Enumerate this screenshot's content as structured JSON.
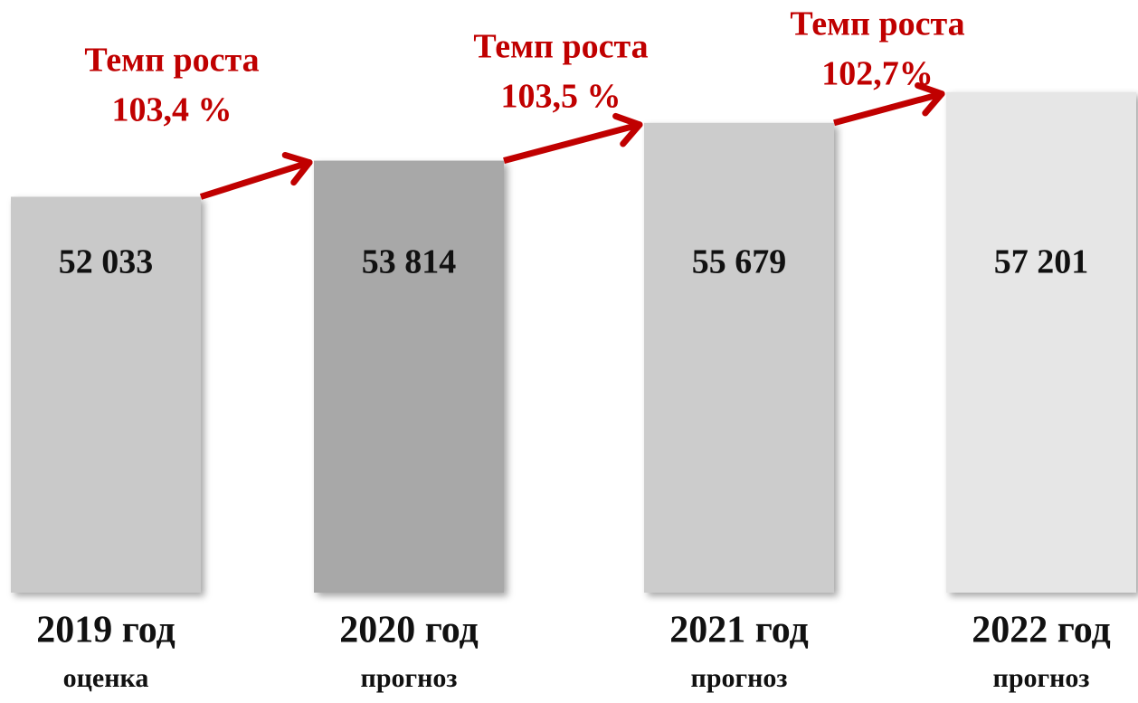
{
  "chart_data": {
    "type": "bar",
    "categories": [
      "2019 год",
      "2020 год",
      "2021 год",
      "2022 год"
    ],
    "sublabels": [
      "оценка",
      "прогноз",
      "прогноз",
      "прогноз"
    ],
    "values": [
      52033,
      53814,
      55679,
      57201
    ],
    "value_labels": [
      "52 033",
      "53 814",
      "55 679",
      "57 201"
    ],
    "colors": [
      "#c9c9c9",
      "#a8a8a8",
      "#cccccc",
      "#e6e6e6"
    ],
    "ylim": [
      32500,
      60000
    ],
    "annotations": [
      {
        "lines": [
          "Темп роста",
          "103,4 %"
        ]
      },
      {
        "lines": [
          "Темп роста",
          "103,5 %"
        ]
      },
      {
        "lines": [
          "Темп роста",
          "102,7%"
        ]
      }
    ],
    "arrow_color": "#c00000"
  }
}
